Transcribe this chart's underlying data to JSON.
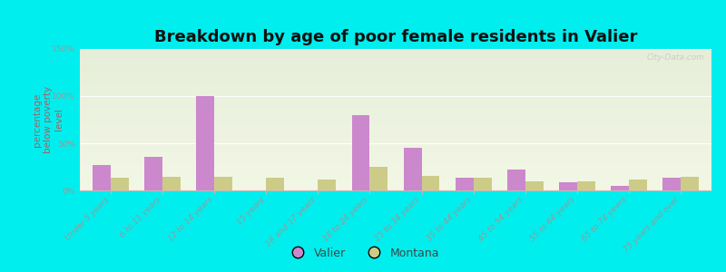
{
  "title": "Breakdown by age of poor female residents in Valier",
  "ylabel": "percentage\nbelow poverty\nlevel",
  "categories": [
    "Under 5 years",
    "6 to 11 years",
    "12 to 14 years",
    "15 years",
    "16 and 17 years",
    "18 to 24 years",
    "25 to 34 years",
    "35 to 44 years",
    "45 to 54 years",
    "55 to 64 years",
    "65 to 74 years",
    "75 years and over"
  ],
  "valier": [
    27,
    36,
    100,
    0,
    0,
    80,
    45,
    13,
    22,
    9,
    5,
    13
  ],
  "montana": [
    13,
    14,
    14,
    13,
    12,
    25,
    15,
    13,
    10,
    10,
    12,
    14
  ],
  "valier_color": "#cc88cc",
  "montana_color": "#cccc88",
  "background_color": "#00eeee",
  "ylim": [
    0,
    150
  ],
  "yticks": [
    0,
    50,
    100,
    150
  ],
  "ytick_labels": [
    "0%",
    "50%",
    "100%",
    "150%"
  ],
  "bar_width": 0.35,
  "title_fontsize": 13,
  "axis_label_fontsize": 7.5,
  "tick_fontsize": 6.5,
  "legend_labels": [
    "Valier",
    "Montana"
  ],
  "ylabel_color": "#996666",
  "tick_color": "#999999",
  "watermark": "City-Data.com"
}
